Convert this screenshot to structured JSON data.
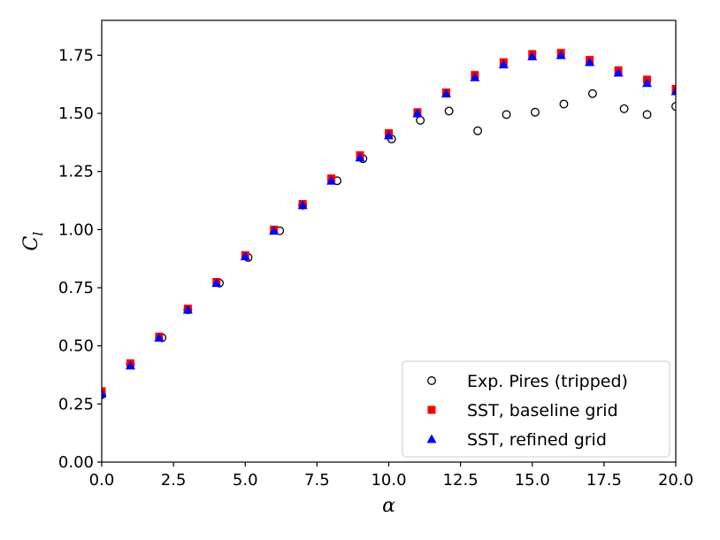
{
  "chart_data": {
    "type": "scatter",
    "xlabel": "α",
    "ylabel_main": "C",
    "ylabel_sub": "l",
    "xlim": [
      0,
      20
    ],
    "ylim": [
      0,
      1.9
    ],
    "x_ticks": [
      "0.0",
      "2.5",
      "5.0",
      "7.5",
      "10.0",
      "12.5",
      "15.0",
      "17.5",
      "20.0"
    ],
    "y_ticks": [
      "0.00",
      "0.25",
      "0.50",
      "0.75",
      "1.00",
      "1.25",
      "1.50",
      "1.75"
    ],
    "grid": false,
    "legend_position": "bottom-right",
    "series": [
      {
        "name": "Exp. Pires (tripped)",
        "marker": "open-circle",
        "color": "#000000",
        "x": [
          0.0,
          1.0,
          2.1,
          3.0,
          4.1,
          5.1,
          6.2,
          7.0,
          8.2,
          9.1,
          10.1,
          11.1,
          12.1,
          13.1,
          14.1,
          15.1,
          16.1,
          17.1,
          18.2,
          19.0,
          20.0
        ],
        "y": [
          0.29,
          0.42,
          0.535,
          0.655,
          0.77,
          0.88,
          0.995,
          1.105,
          1.21,
          1.305,
          1.39,
          1.47,
          1.51,
          1.425,
          1.495,
          1.505,
          1.54,
          1.585,
          1.52,
          1.495,
          1.53
        ]
      },
      {
        "name": "SST, baseline grid",
        "marker": "square",
        "color": "#ff0000",
        "x": [
          0,
          1,
          2,
          3,
          4,
          5,
          6,
          7,
          8,
          9,
          10,
          11,
          12,
          13,
          14,
          15,
          16,
          17,
          18,
          19,
          20
        ],
        "y": [
          0.305,
          0.425,
          0.54,
          0.66,
          0.775,
          0.89,
          1.0,
          1.11,
          1.22,
          1.32,
          1.415,
          1.505,
          1.59,
          1.665,
          1.72,
          1.755,
          1.76,
          1.73,
          1.685,
          1.645,
          1.605
        ]
      },
      {
        "name": "SST, refined grid",
        "marker": "triangle",
        "color": "#0000ff",
        "x": [
          0,
          1,
          2,
          3,
          4,
          5,
          6,
          7,
          8,
          9,
          10,
          11,
          12,
          13,
          14,
          15,
          16,
          17,
          18,
          19,
          20
        ],
        "y": [
          0.295,
          0.415,
          0.535,
          0.655,
          0.77,
          0.885,
          0.995,
          1.105,
          1.21,
          1.31,
          1.405,
          1.5,
          1.585,
          1.655,
          1.71,
          1.745,
          1.75,
          1.72,
          1.675,
          1.63,
          1.595
        ]
      }
    ]
  }
}
